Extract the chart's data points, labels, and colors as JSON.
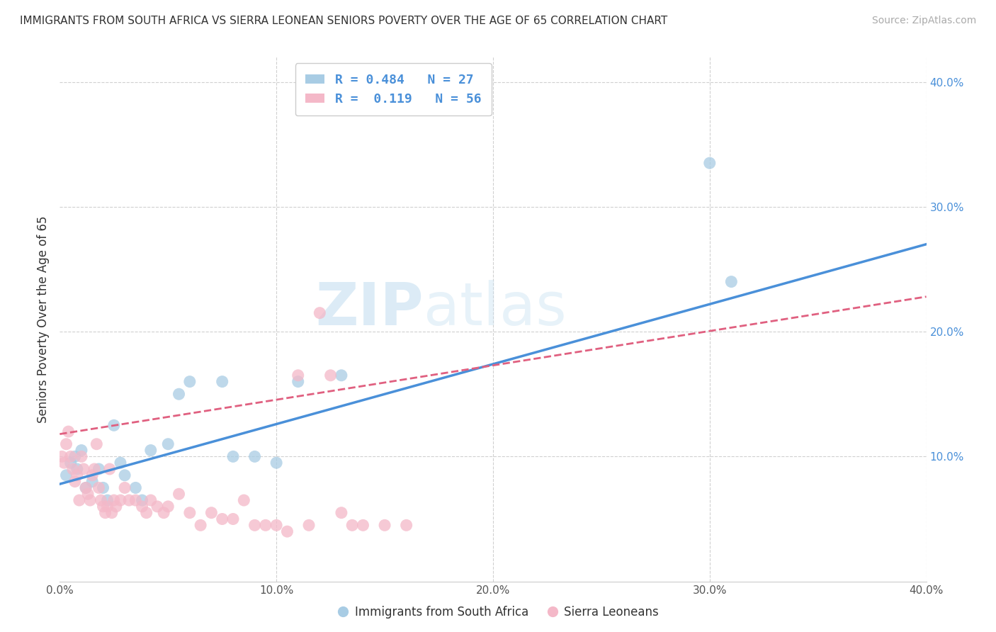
{
  "title": "IMMIGRANTS FROM SOUTH AFRICA VS SIERRA LEONEAN SENIORS POVERTY OVER THE AGE OF 65 CORRELATION CHART",
  "source": "Source: ZipAtlas.com",
  "ylabel": "Seniors Poverty Over the Age of 65",
  "xlim": [
    0.0,
    0.4
  ],
  "ylim": [
    0.0,
    0.42
  ],
  "x_ticks": [
    0.0,
    0.1,
    0.2,
    0.3,
    0.4
  ],
  "x_tick_labels": [
    "0.0%",
    "10.0%",
    "20.0%",
    "30.0%",
    "40.0%"
  ],
  "y_ticks_right": [
    0.1,
    0.2,
    0.3,
    0.4
  ],
  "y_tick_labels_right": [
    "10.0%",
    "20.0%",
    "30.0%",
    "40.0%"
  ],
  "watermark_zip": "ZIP",
  "watermark_atlas": "atlas",
  "blue_color": "#a8cce4",
  "pink_color": "#f4b8c8",
  "blue_line_color": "#4a90d9",
  "pink_line_color": "#e06080",
  "legend_text_color": "#4a90d9",
  "background_color": "#ffffff",
  "grid_color": "#d0d0d0",
  "blue_scatter_x": [
    0.003,
    0.005,
    0.007,
    0.008,
    0.01,
    0.012,
    0.015,
    0.018,
    0.02,
    0.022,
    0.025,
    0.028,
    0.03,
    0.035,
    0.038,
    0.042,
    0.05,
    0.055,
    0.06,
    0.075,
    0.08,
    0.09,
    0.1,
    0.11,
    0.13,
    0.3,
    0.31
  ],
  "blue_scatter_y": [
    0.085,
    0.095,
    0.1,
    0.09,
    0.105,
    0.075,
    0.08,
    0.09,
    0.075,
    0.065,
    0.125,
    0.095,
    0.085,
    0.075,
    0.065,
    0.105,
    0.11,
    0.15,
    0.16,
    0.16,
    0.1,
    0.1,
    0.095,
    0.16,
    0.165,
    0.335,
    0.24
  ],
  "pink_scatter_x": [
    0.001,
    0.002,
    0.003,
    0.004,
    0.005,
    0.006,
    0.007,
    0.008,
    0.009,
    0.01,
    0.011,
    0.012,
    0.013,
    0.014,
    0.015,
    0.016,
    0.017,
    0.018,
    0.019,
    0.02,
    0.021,
    0.022,
    0.023,
    0.024,
    0.025,
    0.026,
    0.028,
    0.03,
    0.032,
    0.035,
    0.038,
    0.04,
    0.042,
    0.045,
    0.048,
    0.05,
    0.055,
    0.06,
    0.065,
    0.07,
    0.075,
    0.08,
    0.085,
    0.09,
    0.095,
    0.1,
    0.105,
    0.11,
    0.115,
    0.12,
    0.125,
    0.13,
    0.135,
    0.14,
    0.15,
    0.16
  ],
  "pink_scatter_y": [
    0.1,
    0.095,
    0.11,
    0.12,
    0.1,
    0.09,
    0.08,
    0.085,
    0.065,
    0.1,
    0.09,
    0.075,
    0.07,
    0.065,
    0.085,
    0.09,
    0.11,
    0.075,
    0.065,
    0.06,
    0.055,
    0.06,
    0.09,
    0.055,
    0.065,
    0.06,
    0.065,
    0.075,
    0.065,
    0.065,
    0.06,
    0.055,
    0.065,
    0.06,
    0.055,
    0.06,
    0.07,
    0.055,
    0.045,
    0.055,
    0.05,
    0.05,
    0.065,
    0.045,
    0.045,
    0.045,
    0.04,
    0.165,
    0.045,
    0.215,
    0.165,
    0.055,
    0.045,
    0.045,
    0.045,
    0.045
  ],
  "blue_line_x0": 0.0,
  "blue_line_y0": 0.078,
  "blue_line_x1": 0.4,
  "blue_line_y1": 0.27,
  "pink_line_x0": 0.0,
  "pink_line_y0": 0.118,
  "pink_line_x1": 0.4,
  "pink_line_y1": 0.228
}
